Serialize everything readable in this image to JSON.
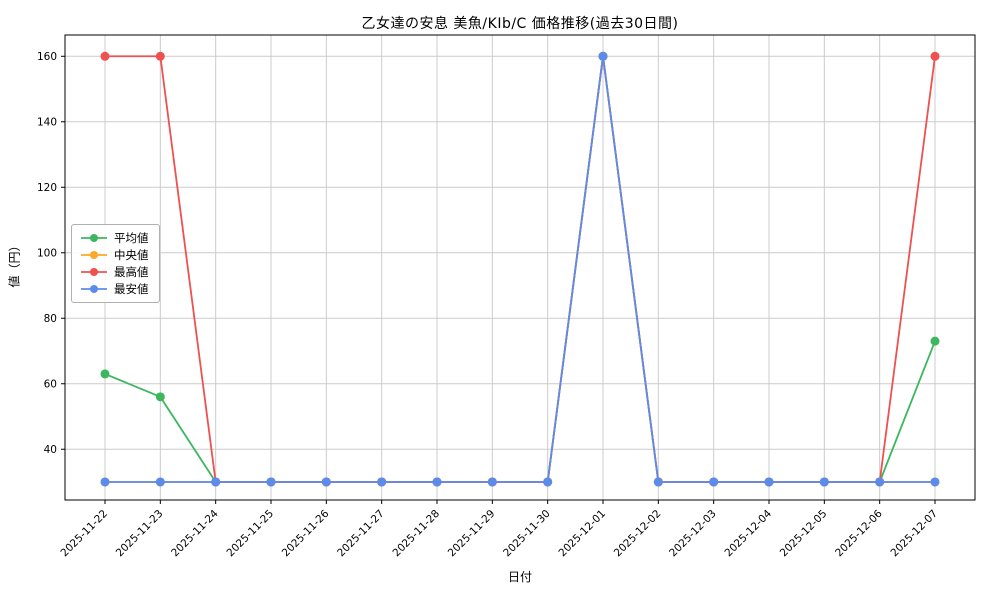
{
  "title": "乙女達の安息 美魚/KIb/C 価格推移(過去30日間)",
  "xlabel": "日付",
  "ylabel": "値（円）",
  "colors": {
    "mean": "#3cb75e",
    "median": "#ffa726",
    "max": "#ef5050",
    "min": "#5c8ceb",
    "grid": "#cccccc",
    "frame": "#000000"
  },
  "chart_data": {
    "type": "line",
    "x": [
      "2025-11-22",
      "2025-11-23",
      "2025-11-24",
      "2025-11-25",
      "2025-11-26",
      "2025-11-27",
      "2025-11-28",
      "2025-11-29",
      "2025-11-30",
      "2025-12-01",
      "2025-12-02",
      "2025-12-03",
      "2025-12-04",
      "2025-12-05",
      "2025-12-06",
      "2025-12-07"
    ],
    "series": [
      {
        "name": "平均値",
        "color": "#3cb75e",
        "values": [
          63,
          56,
          30,
          30,
          30,
          30,
          30,
          30,
          30,
          160,
          30,
          30,
          30,
          30,
          30,
          73
        ]
      },
      {
        "name": "中央値",
        "color": "#ffa726",
        "values": [
          30,
          30,
          30,
          30,
          30,
          30,
          30,
          30,
          30,
          160,
          30,
          30,
          30,
          30,
          30,
          30
        ]
      },
      {
        "name": "最高値",
        "color": "#ef5050",
        "values": [
          160,
          160,
          30,
          30,
          30,
          30,
          30,
          30,
          30,
          160,
          30,
          30,
          30,
          30,
          30,
          160
        ]
      },
      {
        "name": "最安値",
        "color": "#5c8ceb",
        "values": [
          30,
          30,
          30,
          30,
          30,
          30,
          30,
          30,
          30,
          160,
          30,
          30,
          30,
          30,
          30,
          30
        ]
      }
    ],
    "yticks": [
      40,
      60,
      80,
      100,
      120,
      140,
      160
    ],
    "ylim": [
      24.5,
      166.5
    ],
    "grid": true,
    "legend_position": "left-middle",
    "title": "乙女達の安息 美魚/KIb/C 価格推移(過去30日間)",
    "xlabel": "日付",
    "ylabel": "値（円）"
  }
}
